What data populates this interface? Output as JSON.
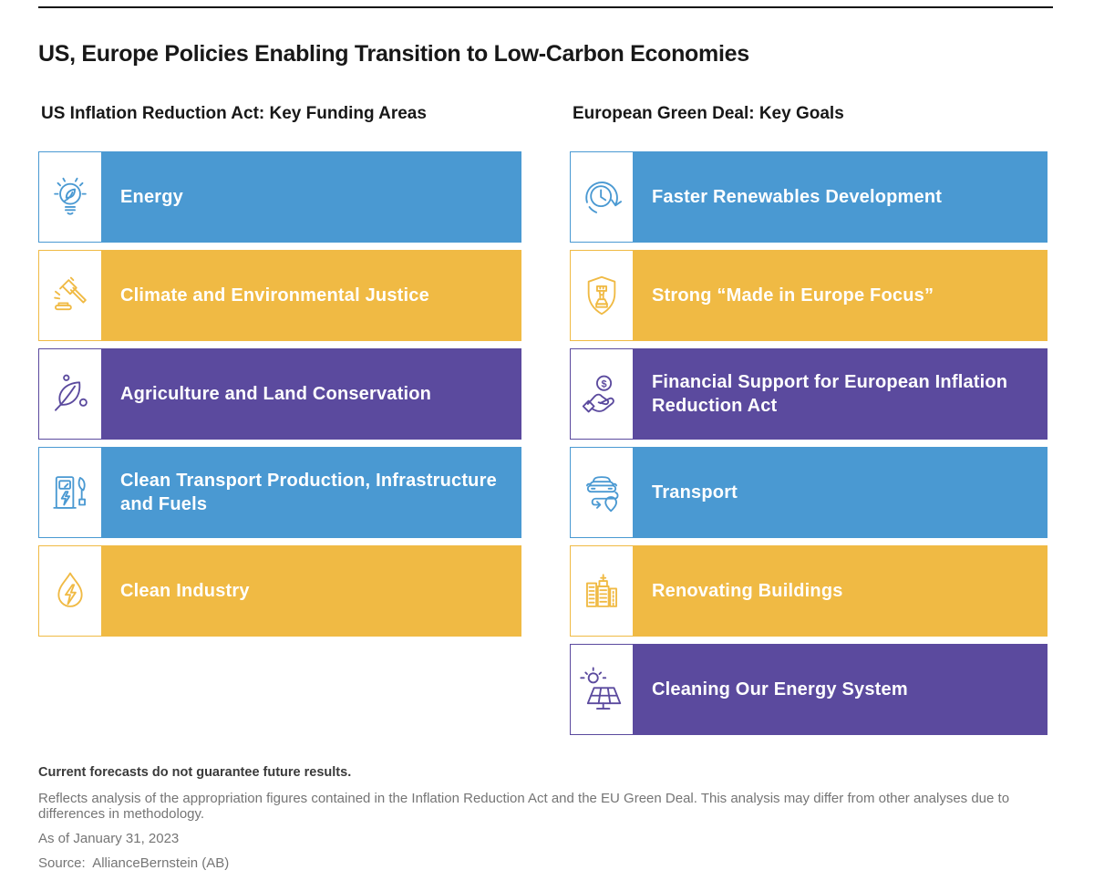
{
  "page": {
    "title": "US, Europe Policies Enabling Transition to Low-Carbon Economies"
  },
  "colors": {
    "blue": "#4A99D2",
    "yellow": "#F0BA44",
    "purple": "#5B4A9E"
  },
  "panels": [
    {
      "heading": "US Inflation Reduction Act: Key Funding Areas",
      "rows": [
        {
          "label": "Energy",
          "color": "blue",
          "icon": "lightbulb-leaf-icon"
        },
        {
          "label": "Climate and Environmental Justice",
          "color": "yellow",
          "icon": "gavel-icon"
        },
        {
          "label": "Agriculture and Land Conservation",
          "color": "purple",
          "icon": "leaf-icon"
        },
        {
          "label": "Clean Transport Production, Infrastructure and Fuels",
          "color": "blue",
          "icon": "ev-charger-icon"
        },
        {
          "label": "Clean Industry",
          "color": "yellow",
          "icon": "droplet-bolt-icon"
        }
      ]
    },
    {
      "heading": "European Green Deal: Key Goals",
      "rows": [
        {
          "label": "Faster Renewables Development",
          "color": "blue",
          "icon": "clock-arrow-icon"
        },
        {
          "label": "Strong “Made in Europe Focus”",
          "color": "yellow",
          "icon": "shield-rook-icon"
        },
        {
          "label": "Financial Support for European Inflation Reduction Act",
          "color": "purple",
          "icon": "hand-coin-icon"
        },
        {
          "label": "Transport",
          "color": "blue",
          "icon": "car-route-icon"
        },
        {
          "label": "Renovating Buildings",
          "color": "yellow",
          "icon": "buildings-icon"
        },
        {
          "label": "Cleaning Our Energy System",
          "color": "purple",
          "icon": "solar-panel-icon"
        }
      ]
    }
  ],
  "footnotes": {
    "bold_note": "Current forecasts do not guarantee future results.",
    "analysis_note": "Reflects analysis of the appropriation figures contained in the Inflation Reduction Act and the EU Green Deal. This analysis may differ from other analyses due to differences in methodology.",
    "as_of": "As of January 31, 2023",
    "source": "Source:  AllianceBernstein (AB)"
  }
}
